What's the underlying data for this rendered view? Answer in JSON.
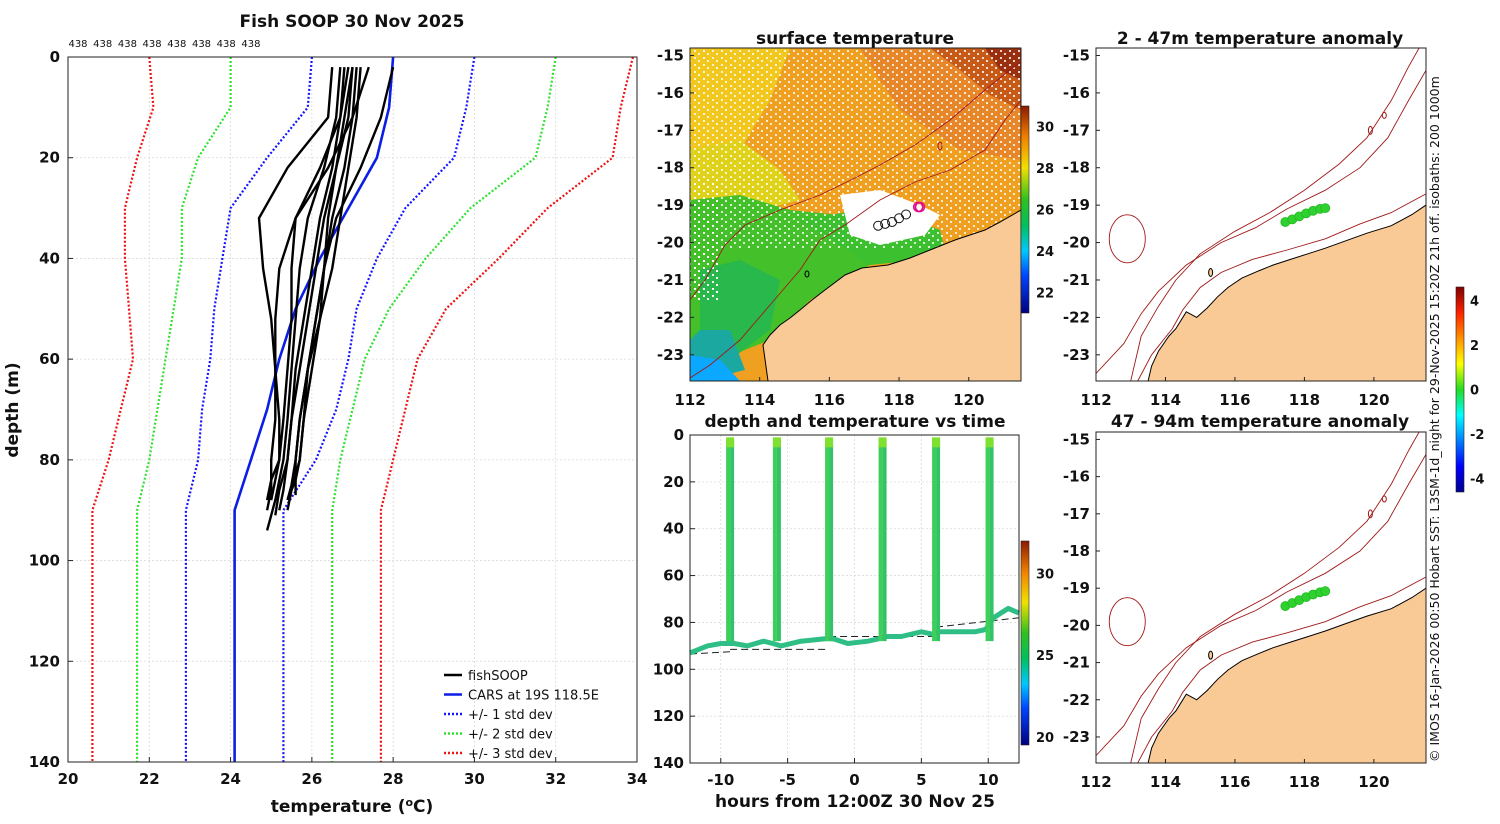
{
  "figure": {
    "side_note": "© IMOS 16-Jan-2026 00:50 Hobart SST: L3SM-1d_night for 29-Nov-2025 15:20Z 21h off. isobaths: 200  1000m",
    "colors": {
      "land": "#f9c996",
      "fishsoop": "#000000",
      "cars": "#0a1ee6",
      "std1": "#1515ff",
      "std2": "#2ee12e",
      "std3": "#ee1212",
      "isobath": "#a01818"
    }
  },
  "chart_data": [
    {
      "type": "line",
      "id": "profile",
      "title": "Fish SOOP 30 Nov 2025",
      "xlabel": "temperature (°C)",
      "ylabel": "depth (m)",
      "xlim": [
        20,
        34
      ],
      "ylim": [
        140,
        0
      ],
      "xticks": [
        "20",
        "22",
        "24",
        "26",
        "28",
        "30",
        "32",
        "34"
      ],
      "yticks": [
        "0",
        "20",
        "40",
        "60",
        "80",
        "100",
        "120",
        "140"
      ],
      "top_labels": [
        "438",
        "438",
        "438",
        "438",
        "438",
        "438",
        "438",
        "438"
      ],
      "legend": [
        "fishSOOP",
        "CARS at 19S 118.5E",
        "+/- 1 std dev",
        "+/- 2 std dev",
        "+/- 3 std dev"
      ],
      "legend_position": "bottom-right",
      "depths": [
        0,
        10,
        20,
        30,
        40,
        50,
        60,
        70,
        80,
        90,
        140
      ],
      "cars": [
        28.0,
        27.9,
        27.6,
        26.9,
        26.2,
        25.6,
        25.2,
        24.9,
        24.5,
        24.1,
        24.1
      ],
      "bands": [
        {
          "name": "+/- 1 std dev",
          "lower": [
            26.0,
            25.9,
            24.9,
            24.0,
            23.8,
            23.6,
            23.5,
            23.3,
            23.2,
            22.9,
            22.9
          ],
          "upper": [
            30.0,
            29.8,
            29.5,
            28.3,
            27.6,
            27.1,
            26.9,
            26.6,
            26.1,
            25.3,
            25.3
          ]
        },
        {
          "name": "+/- 2 std dev",
          "lower": [
            24.0,
            24.0,
            23.2,
            22.8,
            22.8,
            22.6,
            22.4,
            22.2,
            22.0,
            21.7,
            21.7
          ],
          "upper": [
            32.0,
            31.8,
            31.5,
            29.9,
            28.8,
            27.9,
            27.3,
            27.0,
            26.7,
            26.5,
            26.5
          ]
        },
        {
          "name": "+/- 3 std dev",
          "lower": [
            22.0,
            22.1,
            21.7,
            21.4,
            21.4,
            21.5,
            21.6,
            21.3,
            21.0,
            20.6,
            20.6
          ],
          "upper": [
            33.9,
            33.6,
            33.4,
            31.8,
            30.6,
            29.3,
            28.6,
            28.3,
            28.0,
            27.7,
            27.7
          ]
        }
      ],
      "fishsoop_casts": [
        {
          "t": [
            26.7,
            26.6,
            26.3,
            25.9,
            25.7,
            25.6,
            25.5,
            25.4,
            25.3,
            25.1,
            24.9
          ],
          "d": [
            2,
            12,
            22,
            32,
            42,
            52,
            62,
            72,
            80,
            88,
            94
          ]
        },
        {
          "t": [
            26.8,
            26.7,
            26.5,
            26.2,
            26.0,
            25.8,
            25.6,
            25.5,
            25.4,
            25.2,
            25.1
          ],
          "d": [
            2,
            12,
            22,
            32,
            42,
            52,
            62,
            72,
            80,
            86,
            91
          ]
        },
        {
          "t": [
            27.0,
            26.9,
            26.6,
            26.3,
            26.1,
            25.9,
            25.7,
            25.5,
            25.4,
            25.3,
            25.2
          ],
          "d": [
            2,
            12,
            22,
            32,
            42,
            52,
            62,
            72,
            80,
            86,
            90
          ]
        },
        {
          "t": [
            27.1,
            27.0,
            26.8,
            26.5,
            26.3,
            26.1,
            25.9,
            25.7,
            25.6,
            25.5,
            25.4
          ],
          "d": [
            2,
            12,
            22,
            32,
            42,
            52,
            62,
            72,
            80,
            85,
            88
          ]
        },
        {
          "t": [
            26.9,
            26.7,
            26.2,
            25.6,
            25.5,
            25.5,
            25.4,
            25.3,
            25.2,
            25.0,
            24.9
          ],
          "d": [
            2,
            12,
            22,
            32,
            42,
            52,
            62,
            72,
            80,
            84,
            88
          ]
        },
        {
          "t": [
            27.2,
            27.1,
            26.9,
            26.7,
            26.5,
            26.2,
            25.9,
            25.7,
            25.6,
            25.6,
            25.6
          ],
          "d": [
            2,
            12,
            22,
            32,
            42,
            52,
            62,
            72,
            80,
            85,
            87
          ]
        },
        {
          "t": [
            26.5,
            26.4,
            25.4,
            24.7,
            24.8,
            25.0,
            25.1,
            25.1,
            25.0,
            25.0,
            24.9
          ],
          "d": [
            2,
            12,
            22,
            32,
            42,
            52,
            62,
            72,
            80,
            86,
            90
          ]
        },
        {
          "t": [
            27.0,
            26.8,
            26.6,
            26.4,
            26.3,
            26.2,
            26.0,
            25.8,
            25.7,
            25.5,
            25.4
          ],
          "d": [
            2,
            12,
            22,
            32,
            42,
            52,
            62,
            72,
            80,
            86,
            90
          ]
        },
        {
          "t": [
            27.4,
            27.0,
            26.4,
            25.6,
            25.2,
            25.1,
            25.1,
            25.2,
            25.2,
            25.1,
            25.0
          ],
          "d": [
            2,
            12,
            22,
            32,
            42,
            52,
            62,
            72,
            80,
            84,
            88
          ]
        },
        {
          "t": [
            28.0,
            27.7,
            27.2,
            26.6,
            26.3,
            26.1,
            25.9,
            25.8,
            25.7,
            25.6,
            25.5
          ],
          "d": [
            2,
            12,
            22,
            32,
            42,
            52,
            62,
            72,
            80,
            84,
            86
          ]
        }
      ]
    },
    {
      "type": "heatmap",
      "id": "sst_map",
      "title": "surface temperature",
      "xlim": [
        112,
        121.5
      ],
      "ylim": [
        -23.7,
        -14.8
      ],
      "xticks": [
        "112",
        "114",
        "116",
        "118",
        "120"
      ],
      "yticks": [
        "-15",
        "-16",
        "-17",
        "-18",
        "-19",
        "-20",
        "-21",
        "-22",
        "-23"
      ],
      "colorbar_ticks": [
        "22",
        "24",
        "26",
        "28",
        "30"
      ],
      "colorbar_range": [
        21,
        31
      ],
      "cast_positions": [
        [
          117.4,
          -19.55
        ],
        [
          117.6,
          -19.5
        ],
        [
          117.8,
          -19.45
        ],
        [
          118.0,
          -19.35
        ],
        [
          118.2,
          -19.25
        ],
        [
          118.55,
          -19.05
        ],
        [
          118.6,
          -19.05
        ]
      ]
    },
    {
      "type": "scatter",
      "id": "depth_time",
      "title": "depth and temperature vs time",
      "xlabel": "hours from 12:00Z 30 Nov 25",
      "xlim": [
        -12.3,
        12.3
      ],
      "ylim": [
        140,
        0
      ],
      "xticks": [
        "-10",
        "-5",
        "0",
        "5",
        "10"
      ],
      "yticks": [
        "0",
        "20",
        "40",
        "60",
        "80",
        "100",
        "120",
        "140"
      ],
      "colorbar_ticks": [
        "20",
        "25",
        "30"
      ],
      "colorbar_range": [
        19.5,
        32
      ],
      "profile_hours": [
        -9.3,
        -5.8,
        -1.9,
        2.1,
        6.1,
        10.1
      ],
      "bottom_hours": [
        -12.3,
        -11,
        -10,
        -9.6,
        -9.0,
        -8,
        -6.8,
        -6.1,
        -5.5,
        -4,
        -2.2,
        -1.6,
        -0.5,
        1,
        1.8,
        2.4,
        3.5,
        5.0,
        5.8,
        6.4,
        7.5,
        9.0,
        9.8,
        10.4,
        11.5,
        12.3
      ],
      "bottom_depths": [
        93,
        90,
        89,
        89,
        89,
        90,
        88,
        89,
        90,
        88,
        87,
        87,
        89,
        88,
        87,
        86,
        86,
        84,
        85,
        84,
        84,
        84,
        83,
        78,
        74,
        76
      ],
      "seafloor_segments": [
        [
          -12.3,
          93.5,
          -9.3,
          92.5
        ],
        [
          -9.3,
          91.5,
          -1.9,
          91.5
        ],
        [
          -1.9,
          86,
          6.1,
          86
        ],
        [
          6.1,
          82,
          12.3,
          78
        ]
      ]
    },
    {
      "type": "scatter",
      "id": "anomaly_upper",
      "title": "2 - 47m temperature anomaly",
      "xlim": [
        112,
        121.5
      ],
      "ylim": [
        -23.7,
        -14.8
      ],
      "xticks": [
        "112",
        "114",
        "116",
        "118",
        "120"
      ],
      "yticks": [
        "-15",
        "-16",
        "-17",
        "-18",
        "-19",
        "-20",
        "-21",
        "-22",
        "-23"
      ],
      "points": [
        [
          117.45,
          -19.45
        ],
        [
          117.65,
          -19.38
        ],
        [
          117.85,
          -19.3
        ],
        [
          118.05,
          -19.22
        ],
        [
          118.25,
          -19.15
        ],
        [
          118.45,
          -19.1
        ],
        [
          118.6,
          -19.08
        ]
      ],
      "anomaly": [
        0.2,
        0.3,
        0.2,
        0.3,
        0.2,
        0.1,
        0.2
      ]
    },
    {
      "type": "scatter",
      "id": "anomaly_lower",
      "title": "47 - 94m temperature anomaly",
      "xlim": [
        112,
        121.5
      ],
      "ylim": [
        -23.7,
        -14.8
      ],
      "xticks": [
        "112",
        "114",
        "116",
        "118",
        "120"
      ],
      "yticks": [
        "-15",
        "-16",
        "-17",
        "-18",
        "-19",
        "-20",
        "-21",
        "-22",
        "-23"
      ],
      "points": [
        [
          117.45,
          -19.48
        ],
        [
          117.65,
          -19.4
        ],
        [
          117.85,
          -19.32
        ],
        [
          118.05,
          -19.24
        ],
        [
          118.25,
          -19.17
        ],
        [
          118.45,
          -19.11
        ],
        [
          118.6,
          -19.08
        ]
      ],
      "anomaly": [
        0.3,
        0.3,
        0.2,
        0.3,
        0.2,
        0.2,
        0.3
      ],
      "colorbar_ticks": [
        "-4",
        "-2",
        "0",
        "2",
        "4"
      ],
      "colorbar_range": [
        -4.6,
        4.6
      ]
    }
  ]
}
